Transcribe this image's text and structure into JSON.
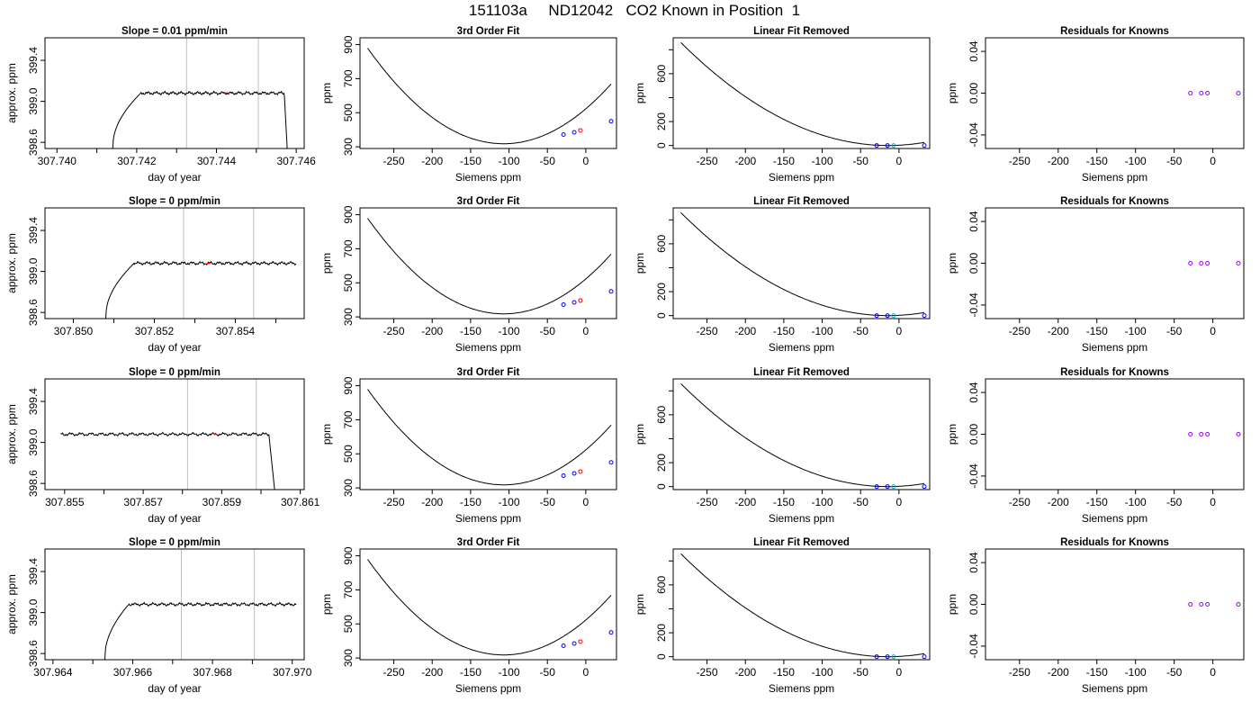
{
  "page_title": "151103a     ND12042   CO2 Known in Position  1",
  "colors": {
    "axis": "#000000",
    "trace": "#000000",
    "vline": "#c0c0c0",
    "marker_blue": "#0000ff",
    "marker_red": "#ff0000",
    "marker_cyan": "#00bcd4",
    "marker_purple": "#9b00ff"
  },
  "chart_data": [
    {
      "type": "line",
      "panel": "row1-timeseries",
      "title": "Slope =  0.01  ppm/min",
      "xlabel": "day of year",
      "ylabel": "approx. ppm",
      "xlim": [
        307.7397,
        307.7462
      ],
      "ylim": [
        398.54,
        399.62
      ],
      "xticks": [
        307.74,
        307.741,
        307.742,
        307.743,
        307.744,
        307.745,
        307.746
      ],
      "xtick_labels": [
        "307.740",
        "",
        "307.742",
        "",
        "307.744",
        "",
        "307.746"
      ],
      "yticks": [
        398.6,
        399.0,
        399.4
      ],
      "ytick_labels": [
        "398.6",
        "399.0",
        "399.4"
      ],
      "trace": {
        "x0": 307.7414,
        "x1": 307.7458,
        "rise_end": 307.7421,
        "fall_start": 307.7457,
        "floor": 398.54,
        "plateau": 399.08
      },
      "vlines": [
        307.74325,
        307.74505
      ],
      "red_mark_x": 307.7442
    },
    {
      "type": "line",
      "panel": "row1-fit",
      "title": "3rd Order Fit",
      "xlabel": "Siemens ppm",
      "ylabel": "ppm",
      "xlim": [
        -294,
        40
      ],
      "ylim": [
        290,
        940
      ],
      "xticks": [
        -250,
        -200,
        -150,
        -100,
        -50,
        0
      ],
      "xtick_labels": [
        "-250",
        "-200",
        "-150",
        "-100",
        "-50",
        "0"
      ],
      "yticks": [
        300,
        500,
        700,
        900
      ],
      "ytick_labels": [
        "300",
        "500",
        "700",
        "900"
      ],
      "curve": {
        "xmin": -284,
        "xmax": 33,
        "xv": -107,
        "ymin": 318,
        "a": 0.0179
      },
      "points": [
        {
          "x": -29,
          "y": 372
        },
        {
          "x": -15,
          "y": 385
        },
        {
          "x": -7,
          "y": 396
        },
        {
          "x": 33,
          "y": 450
        }
      ]
    },
    {
      "type": "line",
      "panel": "row1-linear-removed",
      "title": "Linear Fit Removed",
      "xlabel": "Siemens ppm",
      "ylabel": "ppm",
      "xlim": [
        -294,
        40
      ],
      "ylim": [
        -25,
        900
      ],
      "xticks": [
        -250,
        -200,
        -150,
        -100,
        -50,
        0
      ],
      "xtick_labels": [
        "-250",
        "-200",
        "-150",
        "-100",
        "-50",
        "0"
      ],
      "yticks": [
        0,
        200,
        400,
        600,
        800
      ],
      "ytick_labels": [
        "0",
        "200",
        "",
        "600",
        ""
      ],
      "curve": {
        "xmin": -284,
        "xmax": 33,
        "xv": -14,
        "ymin": 0,
        "a": 0.0118
      },
      "points": [
        {
          "x": -29,
          "y": 0
        },
        {
          "x": -15,
          "y": 0
        },
        {
          "x": -7,
          "y": 0
        },
        {
          "x": 33,
          "y": 0
        }
      ]
    },
    {
      "type": "scatter",
      "panel": "row1-residuals",
      "title": "Residuals for Knowns",
      "xlabel": "Siemens ppm",
      "ylabel": "ppm",
      "xlim": [
        -294,
        40
      ],
      "ylim": [
        -0.053,
        0.053
      ],
      "xticks": [
        -250,
        -200,
        -150,
        -100,
        -50,
        0
      ],
      "xtick_labels": [
        "-250",
        "-200",
        "-150",
        "-100",
        "-50",
        "0"
      ],
      "yticks": [
        -0.04,
        0.0,
        0.04
      ],
      "ytick_labels": [
        "-0.04",
        "0.00",
        "0.04"
      ],
      "points": [
        {
          "x": -29,
          "y": 0
        },
        {
          "x": -15,
          "y": 0
        },
        {
          "x": -7,
          "y": 0
        },
        {
          "x": 33,
          "y": 0
        }
      ]
    },
    {
      "type": "line",
      "panel": "row2-timeseries",
      "title": "Slope =  0  ppm/min",
      "xlabel": "day of year",
      "ylabel": "approx. ppm",
      "xlim": [
        307.8493,
        307.8557
      ],
      "ylim": [
        398.54,
        399.62
      ],
      "xticks": [
        307.85,
        307.851,
        307.852,
        307.853,
        307.854,
        307.855
      ],
      "xtick_labels": [
        "307.850",
        "",
        "307.852",
        "",
        "307.854",
        ""
      ],
      "yticks": [
        398.6,
        399.0,
        399.4
      ],
      "ytick_labels": [
        "398.6",
        "399.0",
        "399.4"
      ],
      "trace": {
        "x0": 307.8508,
        "x1": 307.8555,
        "rise_end": 307.8515,
        "fall_start": null,
        "floor": 398.54,
        "plateau": 399.08
      },
      "vlines": [
        307.85272,
        307.85445
      ],
      "red_mark_x": 307.8533
    },
    {
      "type": "line",
      "panel": "row2-fit",
      "title": "3rd Order Fit",
      "xlabel": "Siemens ppm",
      "ylabel": "ppm",
      "xlim": [
        -294,
        40
      ],
      "ylim": [
        290,
        940
      ],
      "xticks": [
        -250,
        -200,
        -150,
        -100,
        -50,
        0
      ],
      "xtick_labels": [
        "-250",
        "-200",
        "-150",
        "-100",
        "-50",
        "0"
      ],
      "yticks": [
        300,
        500,
        700,
        900
      ],
      "ytick_labels": [
        "300",
        "500",
        "700",
        "900"
      ],
      "curve": {
        "xmin": -284,
        "xmax": 33,
        "xv": -107,
        "ymin": 318,
        "a": 0.0179
      },
      "points": [
        {
          "x": -29,
          "y": 372
        },
        {
          "x": -15,
          "y": 385
        },
        {
          "x": -7,
          "y": 396
        },
        {
          "x": 33,
          "y": 450
        }
      ]
    },
    {
      "type": "line",
      "panel": "row2-linear-removed",
      "title": "Linear Fit Removed",
      "xlabel": "Siemens ppm",
      "ylabel": "ppm",
      "xlim": [
        -294,
        40
      ],
      "ylim": [
        -25,
        900
      ],
      "xticks": [
        -250,
        -200,
        -150,
        -100,
        -50,
        0
      ],
      "xtick_labels": [
        "-250",
        "-200",
        "-150",
        "-100",
        "-50",
        "0"
      ],
      "yticks": [
        0,
        200,
        400,
        600,
        800
      ],
      "ytick_labels": [
        "0",
        "200",
        "",
        "600",
        ""
      ],
      "curve": {
        "xmin": -284,
        "xmax": 33,
        "xv": -14,
        "ymin": 0,
        "a": 0.0118
      },
      "points": [
        {
          "x": -29,
          "y": 0
        },
        {
          "x": -15,
          "y": 0
        },
        {
          "x": -7,
          "y": 0
        },
        {
          "x": 33,
          "y": 0
        }
      ]
    },
    {
      "type": "scatter",
      "panel": "row2-residuals",
      "title": "Residuals for Knowns",
      "xlabel": "Siemens ppm",
      "ylabel": "ppm",
      "xlim": [
        -294,
        40
      ],
      "ylim": [
        -0.053,
        0.053
      ],
      "xticks": [
        -250,
        -200,
        -150,
        -100,
        -50,
        0
      ],
      "xtick_labels": [
        "-250",
        "-200",
        "-150",
        "-100",
        "-50",
        "0"
      ],
      "yticks": [
        -0.04,
        0.0,
        0.04
      ],
      "ytick_labels": [
        "-0.04",
        "0.00",
        "0.04"
      ],
      "points": [
        {
          "x": -29,
          "y": 0
        },
        {
          "x": -15,
          "y": 0
        },
        {
          "x": -7,
          "y": 0
        },
        {
          "x": 33,
          "y": 0
        }
      ]
    },
    {
      "type": "line",
      "panel": "row3-timeseries",
      "title": "Slope =  0  ppm/min",
      "xlabel": "day of year",
      "ylabel": "approx. ppm",
      "xlim": [
        307.8545,
        307.8611
      ],
      "ylim": [
        398.54,
        399.62
      ],
      "xticks": [
        307.855,
        307.856,
        307.857,
        307.858,
        307.859,
        307.86,
        307.861
      ],
      "xtick_labels": [
        "307.855",
        "",
        "307.857",
        "",
        "307.859",
        "",
        "307.861"
      ],
      "yticks": [
        398.6,
        399.0,
        399.4
      ],
      "ytick_labels": [
        "398.6",
        "399.0",
        "399.4"
      ],
      "trace": {
        "x0": 307.8549,
        "x1": 307.8604,
        "rise_end": null,
        "fall_start": 307.8602,
        "floor": 398.54,
        "plateau": 399.08
      },
      "vlines": [
        307.85813,
        307.85988
      ],
      "red_mark_x": 307.8588
    },
    {
      "type": "line",
      "panel": "row3-fit",
      "title": "3rd Order Fit",
      "xlabel": "Siemens ppm",
      "ylabel": "ppm",
      "xlim": [
        -294,
        40
      ],
      "ylim": [
        290,
        940
      ],
      "xticks": [
        -250,
        -200,
        -150,
        -100,
        -50,
        0
      ],
      "xtick_labels": [
        "-250",
        "-200",
        "-150",
        "-100",
        "-50",
        "0"
      ],
      "yticks": [
        300,
        500,
        700,
        900
      ],
      "ytick_labels": [
        "300",
        "500",
        "700",
        "900"
      ],
      "curve": {
        "xmin": -284,
        "xmax": 33,
        "xv": -107,
        "ymin": 318,
        "a": 0.0179
      },
      "points": [
        {
          "x": -29,
          "y": 372
        },
        {
          "x": -15,
          "y": 385
        },
        {
          "x": -7,
          "y": 396
        },
        {
          "x": 33,
          "y": 450
        }
      ]
    },
    {
      "type": "line",
      "panel": "row3-linear-removed",
      "title": "Linear Fit Removed",
      "xlabel": "Siemens ppm",
      "ylabel": "ppm",
      "xlim": [
        -294,
        40
      ],
      "ylim": [
        -25,
        900
      ],
      "xticks": [
        -250,
        -200,
        -150,
        -100,
        -50,
        0
      ],
      "xtick_labels": [
        "-250",
        "-200",
        "-150",
        "-100",
        "-50",
        "0"
      ],
      "yticks": [
        0,
        200,
        400,
        600,
        800
      ],
      "ytick_labels": [
        "0",
        "200",
        "",
        "600",
        ""
      ],
      "curve": {
        "xmin": -284,
        "xmax": 33,
        "xv": -14,
        "ymin": 0,
        "a": 0.0118
      },
      "points": [
        {
          "x": -29,
          "y": 0
        },
        {
          "x": -15,
          "y": 0
        },
        {
          "x": -7,
          "y": 0
        },
        {
          "x": 33,
          "y": 0
        }
      ]
    },
    {
      "type": "scatter",
      "panel": "row3-residuals",
      "title": "Residuals for Knowns",
      "xlabel": "Siemens ppm",
      "ylabel": "ppm",
      "xlim": [
        -294,
        40
      ],
      "ylim": [
        -0.053,
        0.053
      ],
      "xticks": [
        -250,
        -200,
        -150,
        -100,
        -50,
        0
      ],
      "xtick_labels": [
        "-250",
        "-200",
        "-150",
        "-100",
        "-50",
        "0"
      ],
      "yticks": [
        -0.04,
        0.0,
        0.04
      ],
      "ytick_labels": [
        "-0.04",
        "0.00",
        "0.04"
      ],
      "points": [
        {
          "x": -29,
          "y": 0
        },
        {
          "x": -15,
          "y": 0
        },
        {
          "x": -7,
          "y": 0
        },
        {
          "x": 33,
          "y": 0
        }
      ]
    },
    {
      "type": "line",
      "panel": "row4-timeseries",
      "title": "Slope =  0  ppm/min",
      "xlabel": "day of year",
      "ylabel": "approx. ppm",
      "xlim": [
        307.9638,
        307.9703
      ],
      "ylim": [
        398.54,
        399.62
      ],
      "xticks": [
        307.964,
        307.965,
        307.966,
        307.967,
        307.968,
        307.969,
        307.97
      ],
      "xtick_labels": [
        "307.964",
        "",
        "307.966",
        "",
        "307.968",
        "",
        "307.970"
      ],
      "yticks": [
        398.6,
        399.0,
        399.4
      ],
      "ytick_labels": [
        "398.6",
        "399.0",
        "399.4"
      ],
      "trace": {
        "x0": 307.9653,
        "x1": 307.9701,
        "rise_end": 307.9659,
        "fall_start": null,
        "floor": 398.54,
        "plateau": 399.08
      },
      "vlines": [
        307.96722,
        307.96905
      ],
      "red_mark_x": 307.9682
    },
    {
      "type": "line",
      "panel": "row4-fit",
      "title": "3rd Order Fit",
      "xlabel": "Siemens ppm",
      "ylabel": "ppm",
      "xlim": [
        -294,
        40
      ],
      "ylim": [
        290,
        940
      ],
      "xticks": [
        -250,
        -200,
        -150,
        -100,
        -50,
        0
      ],
      "xtick_labels": [
        "-250",
        "-200",
        "-150",
        "-100",
        "-50",
        "0"
      ],
      "yticks": [
        300,
        500,
        700,
        900
      ],
      "ytick_labels": [
        "300",
        "500",
        "700",
        "900"
      ],
      "curve": {
        "xmin": -284,
        "xmax": 33,
        "xv": -107,
        "ymin": 318,
        "a": 0.0179
      },
      "points": [
        {
          "x": -29,
          "y": 372
        },
        {
          "x": -15,
          "y": 385
        },
        {
          "x": -7,
          "y": 396
        },
        {
          "x": 33,
          "y": 450
        }
      ]
    },
    {
      "type": "line",
      "panel": "row4-linear-removed",
      "title": "Linear Fit Removed",
      "xlabel": "Siemens ppm",
      "ylabel": "ppm",
      "xlim": [
        -294,
        40
      ],
      "ylim": [
        -25,
        900
      ],
      "xticks": [
        -250,
        -200,
        -150,
        -100,
        -50,
        0
      ],
      "xtick_labels": [
        "-250",
        "-200",
        "-150",
        "-100",
        "-50",
        "0"
      ],
      "yticks": [
        0,
        200,
        400,
        600,
        800
      ],
      "ytick_labels": [
        "0",
        "200",
        "",
        "600",
        ""
      ],
      "curve": {
        "xmin": -284,
        "xmax": 33,
        "xv": -14,
        "ymin": 0,
        "a": 0.0118
      },
      "points": [
        {
          "x": -29,
          "y": 0
        },
        {
          "x": -15,
          "y": 0
        },
        {
          "x": -7,
          "y": 0
        },
        {
          "x": 33,
          "y": 0
        }
      ]
    },
    {
      "type": "scatter",
      "panel": "row4-residuals",
      "title": "Residuals for Knowns",
      "xlabel": "Siemens ppm",
      "ylabel": "ppm",
      "xlim": [
        -294,
        40
      ],
      "ylim": [
        -0.053,
        0.053
      ],
      "xticks": [
        -250,
        -200,
        -150,
        -100,
        -50,
        0
      ],
      "xtick_labels": [
        "-250",
        "-200",
        "-150",
        "-100",
        "-50",
        "0"
      ],
      "yticks": [
        -0.04,
        0.0,
        0.04
      ],
      "ytick_labels": [
        "-0.04",
        "0.00",
        "0.04"
      ],
      "points": [
        {
          "x": -29,
          "y": 0
        },
        {
          "x": -15,
          "y": 0
        },
        {
          "x": -7,
          "y": 0
        },
        {
          "x": 33,
          "y": 0
        }
      ]
    }
  ]
}
